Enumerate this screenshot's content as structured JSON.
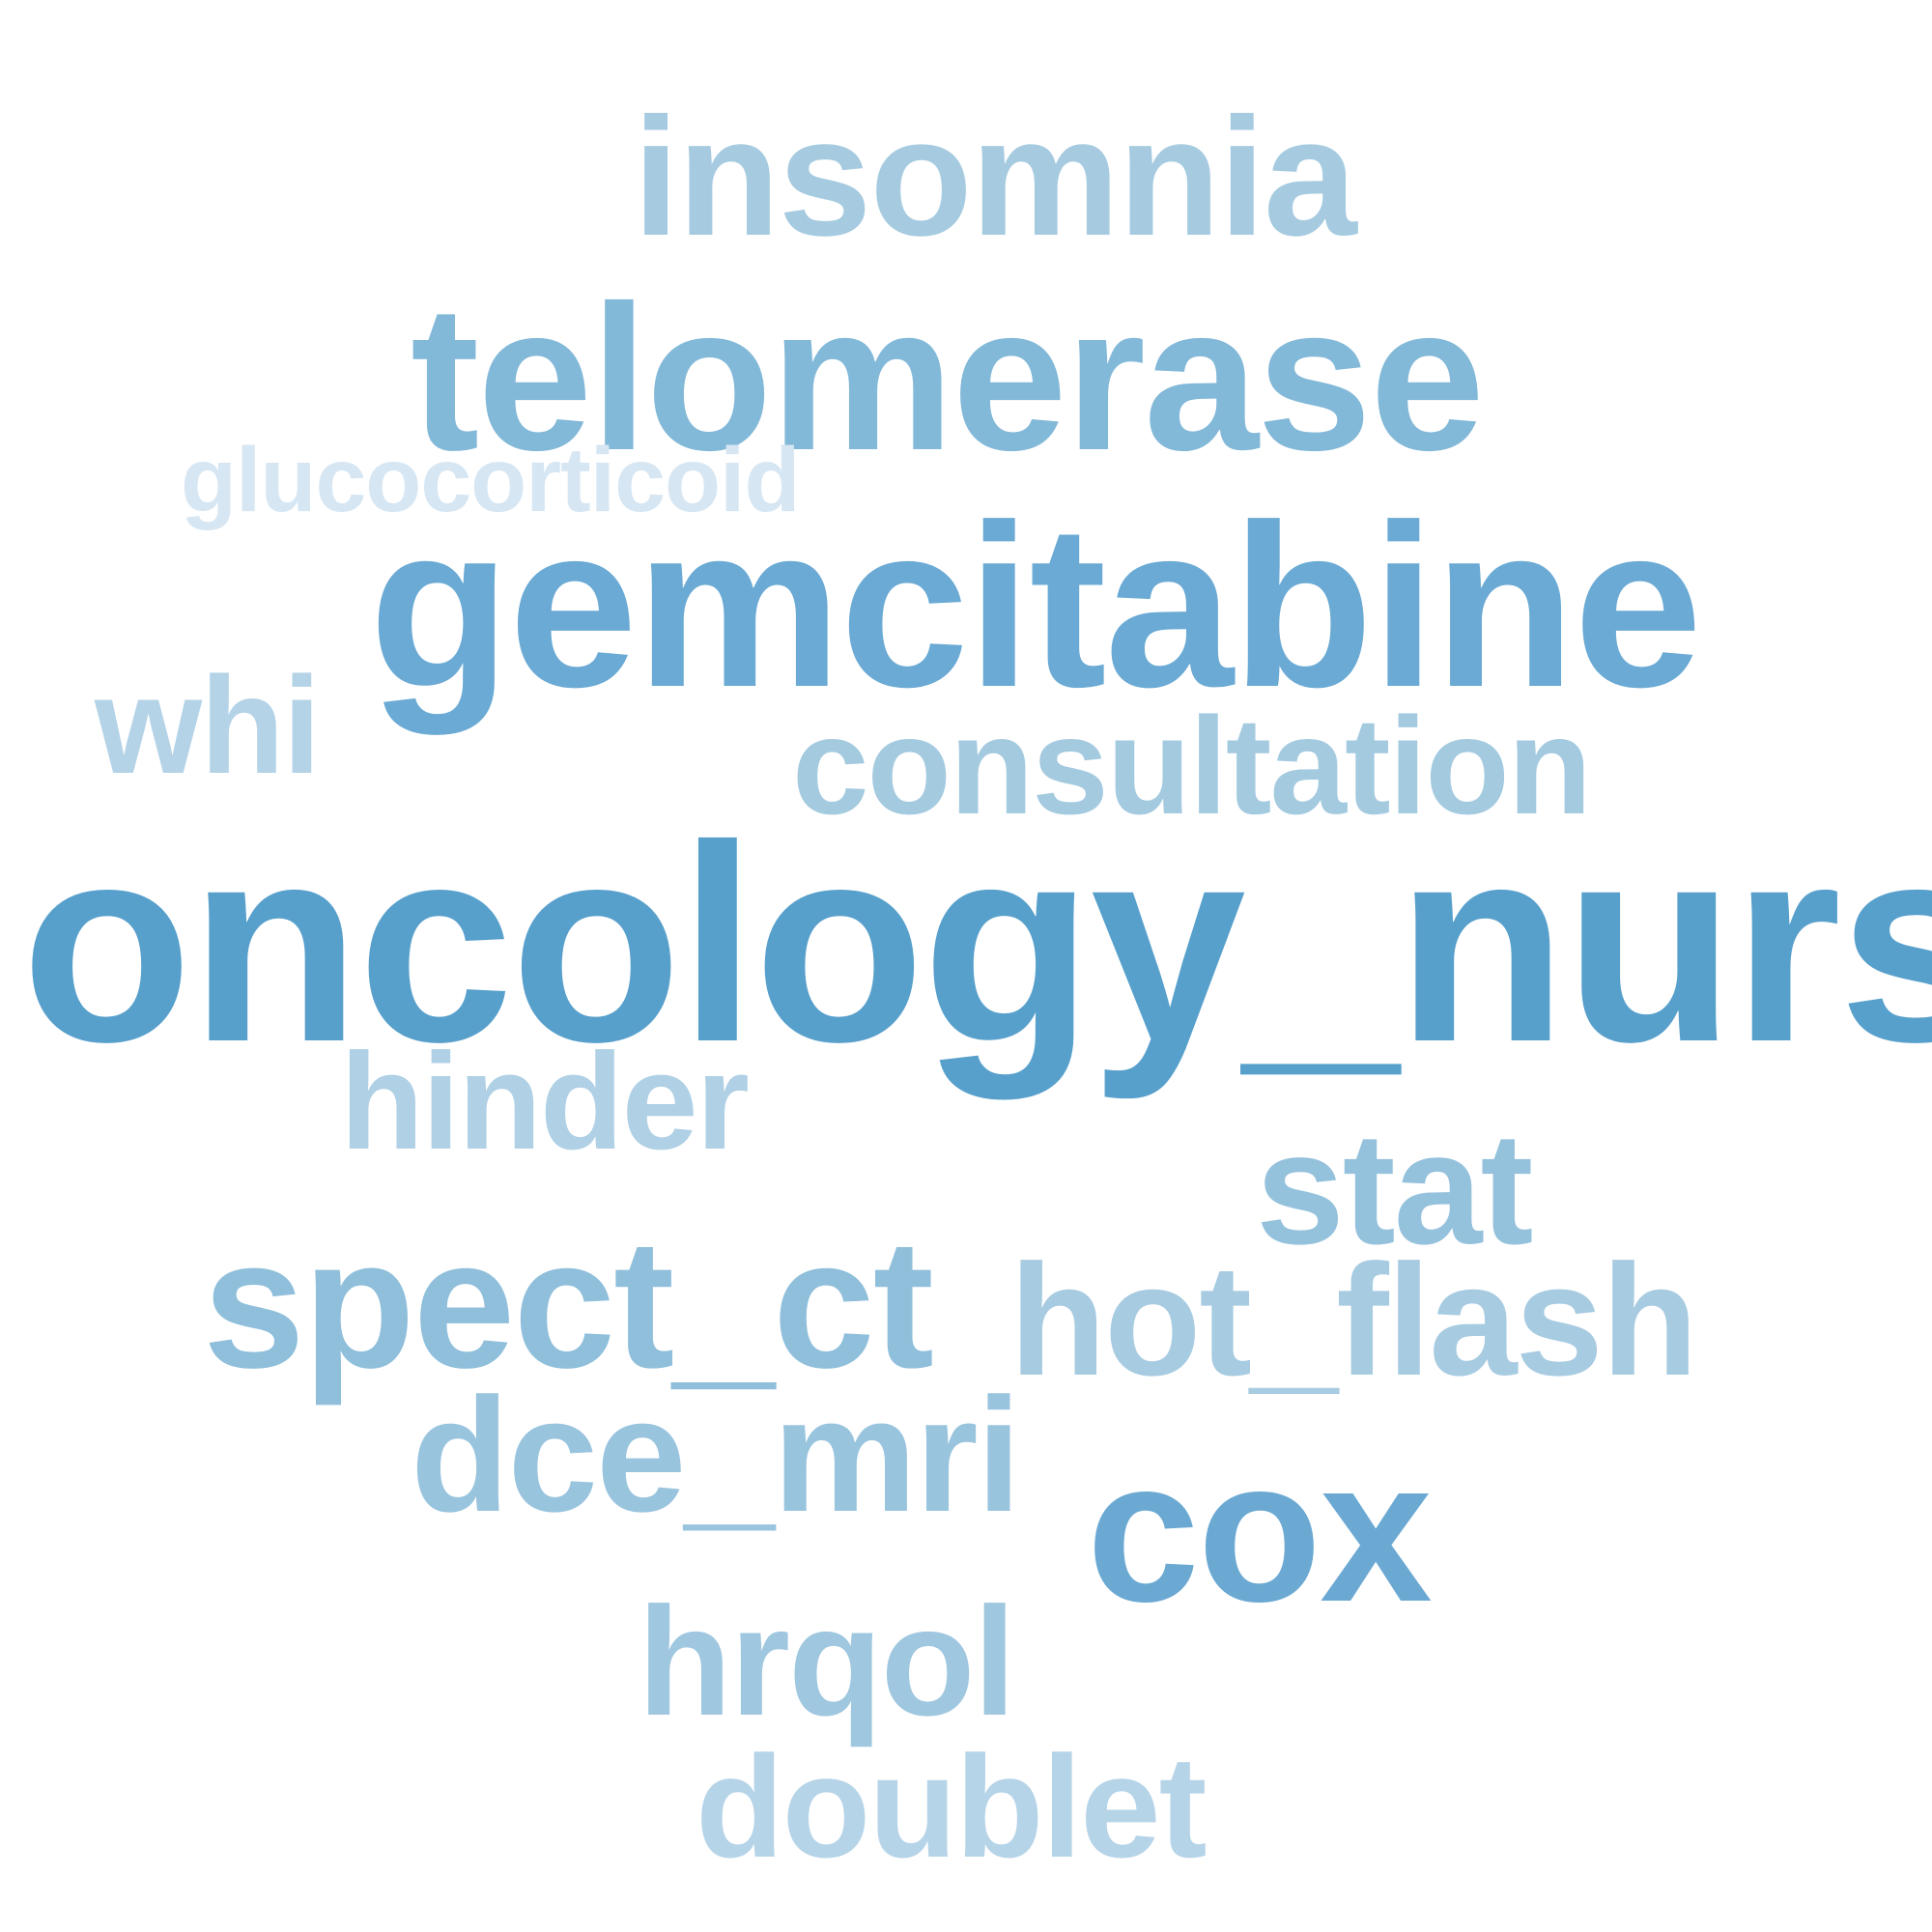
{
  "words": [
    {
      "key": "insomnia",
      "text": "insomnia",
      "color": "#a6cbe0"
    },
    {
      "key": "telomerase",
      "text": "telomerase",
      "color": "#82b8d8"
    },
    {
      "key": "glucocorticoid",
      "text": "glucocorticoid",
      "color": "#d6e6f3"
    },
    {
      "key": "gemcitabine",
      "text": "gemcitabine",
      "color": "#6aaad4"
    },
    {
      "key": "whi",
      "text": "whi",
      "color": "#b4d3e7"
    },
    {
      "key": "consultation",
      "text": "consultation",
      "color": "#a4cae0"
    },
    {
      "key": "oncology",
      "text": "oncology_nurs",
      "color": "#58a0cc"
    },
    {
      "key": "hinder",
      "text": "hinder",
      "color": "#afd0e5"
    },
    {
      "key": "stat",
      "text": "stat",
      "color": "#94c1dc"
    },
    {
      "key": "spect_ct",
      "text": "spect_ct",
      "color": "#8fbfdb"
    },
    {
      "key": "hot_flash",
      "text": "hot_flash",
      "color": "#a7cbe1"
    },
    {
      "key": "dce_mri",
      "text": "dce_mri",
      "color": "#99c4de"
    },
    {
      "key": "cox",
      "text": "cox",
      "color": "#6ba9d3"
    },
    {
      "key": "hrqol",
      "text": "hrqol",
      "color": "#9fc7df"
    },
    {
      "key": "doublet",
      "text": "doublet",
      "color": "#b6d4e8"
    }
  ]
}
